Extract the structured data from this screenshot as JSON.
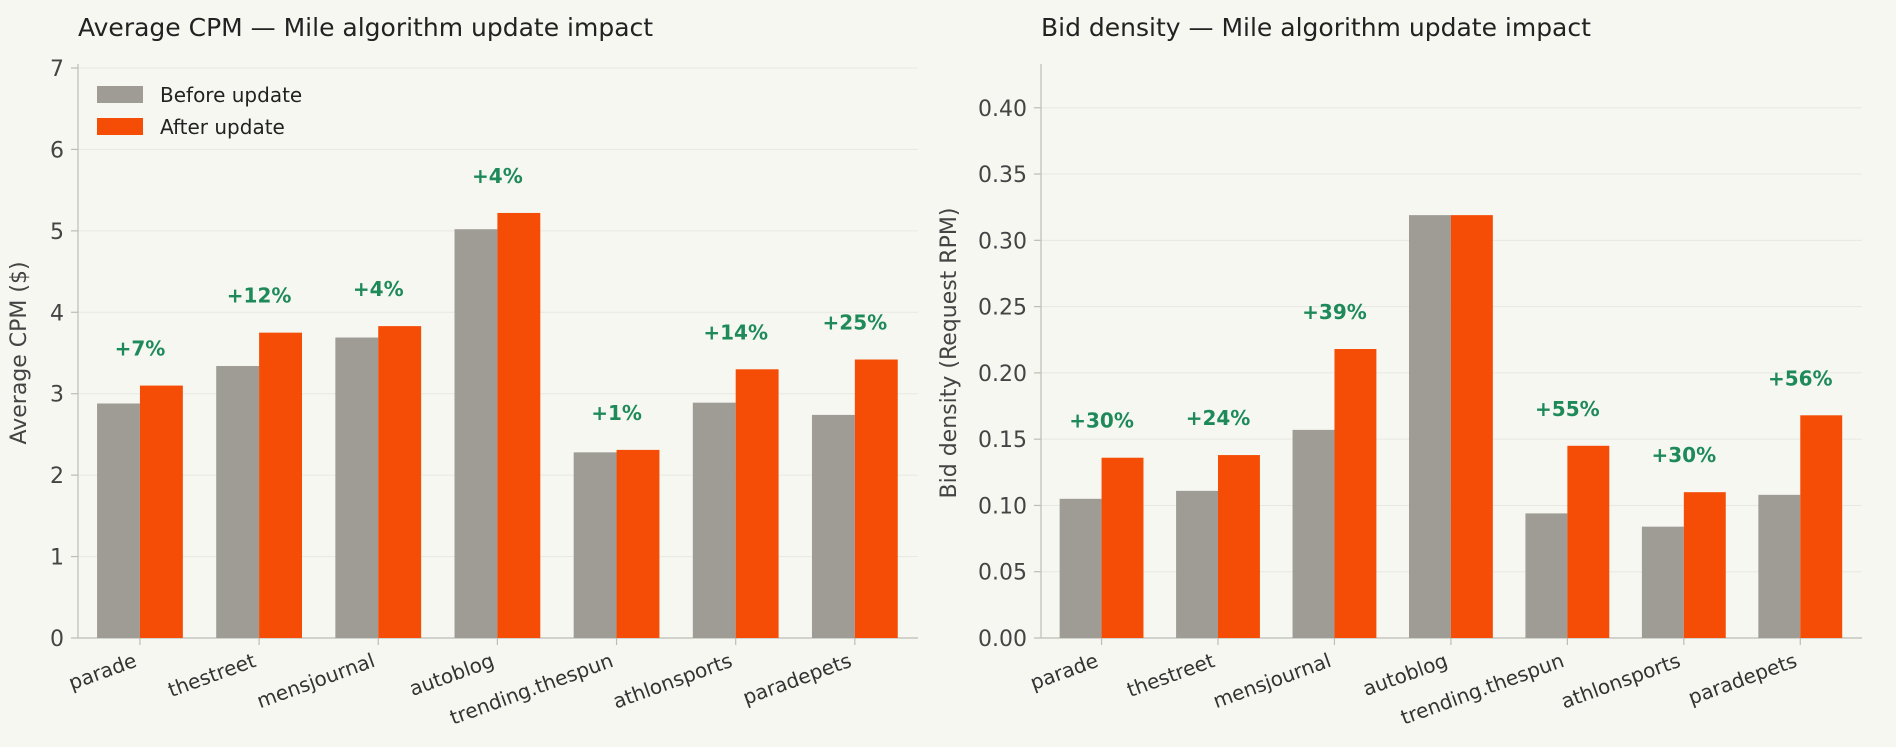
{
  "chart_data": [
    {
      "type": "bar",
      "title": "Average CPM — Mile algorithm update impact",
      "ylabel": "Average CPM ($)",
      "xlabel": "",
      "ylim": [
        0,
        7
      ],
      "yticks": [
        "0",
        "1",
        "2",
        "3",
        "4",
        "5",
        "6",
        "7"
      ],
      "grid": true,
      "legend": "top-left",
      "categories": [
        "parade",
        "thestreet",
        "mensjournal",
        "autoblog",
        "trending.thespun",
        "athlonsports",
        "paradepets"
      ],
      "series": [
        {
          "name": "Before update",
          "color": "#9e9c94",
          "values": [
            2.88,
            3.34,
            3.69,
            5.02,
            2.28,
            2.89,
            2.74
          ]
        },
        {
          "name": "After update",
          "color": "#f54d05",
          "values": [
            3.1,
            3.75,
            3.83,
            5.22,
            2.31,
            3.3,
            3.42
          ]
        }
      ],
      "annotations": [
        "+7%",
        "+12%",
        "+4%",
        "+4%",
        "+1%",
        "+14%",
        "+25%"
      ]
    },
    {
      "type": "bar",
      "title": "Bid density — Mile algorithm update impact",
      "ylabel": "Bid density (Request RPM)",
      "xlabel": "",
      "ylim": [
        0,
        0.43
      ],
      "yticks": [
        "0.00",
        "0.05",
        "0.10",
        "0.15",
        "0.20",
        "0.25",
        "0.30",
        "0.35",
        "0.40"
      ],
      "grid": true,
      "categories": [
        "parade",
        "thestreet",
        "mensjournal",
        "autoblog",
        "trending.thespun",
        "athlonsports",
        "paradepets"
      ],
      "series": [
        {
          "name": "Before update",
          "color": "#9e9c94",
          "values": [
            0.105,
            0.111,
            0.157,
            0.319,
            0.094,
            0.084,
            0.108
          ]
        },
        {
          "name": "After update",
          "color": "#f54d05",
          "values": [
            0.136,
            0.138,
            0.218,
            0.319,
            0.145,
            0.11,
            0.168
          ]
        }
      ],
      "annotations": [
        "+30%",
        "+24%",
        "+39%",
        "",
        "+55%",
        "+30%",
        "+56%"
      ]
    }
  ]
}
